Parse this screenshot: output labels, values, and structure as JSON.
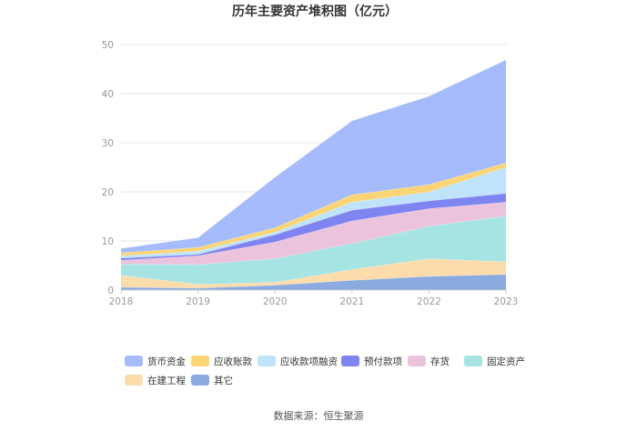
{
  "chart_data": {
    "type": "area",
    "stacked": true,
    "title": "历年主要资产堆积图（亿元）",
    "x": [
      "2018",
      "2019",
      "2020",
      "2021",
      "2022",
      "2023"
    ],
    "ylim": [
      0,
      50
    ],
    "yticks": [
      0,
      10,
      20,
      30,
      40,
      50
    ],
    "grid": true,
    "legend_position": "bottom",
    "series": [
      {
        "name": "其它",
        "color": "#8aaae0",
        "values": [
          0.6,
          0.4,
          1.0,
          2.0,
          2.8,
          3.2
        ]
      },
      {
        "name": "在建工程",
        "color": "#fbdcaa",
        "values": [
          2.4,
          0.8,
          0.6,
          2.2,
          3.6,
          2.6
        ]
      },
      {
        "name": "固定资产",
        "color": "#a6e3e3",
        "values": [
          2.3,
          4.0,
          4.8,
          5.3,
          6.6,
          9.3
        ]
      },
      {
        "name": "存货",
        "color": "#ebc3dd",
        "values": [
          0.8,
          1.8,
          3.4,
          4.6,
          3.6,
          2.8
        ]
      },
      {
        "name": "预付款项",
        "color": "#7f85f0",
        "values": [
          0.4,
          0.3,
          1.5,
          2.2,
          1.6,
          1.8
        ]
      },
      {
        "name": "应收款项融资",
        "color": "#bfe3fa",
        "values": [
          0.5,
          0.6,
          0.5,
          1.6,
          1.8,
          5.3
        ]
      },
      {
        "name": "应收账款",
        "color": "#fbd575",
        "values": [
          0.6,
          0.8,
          0.9,
          1.5,
          1.5,
          0.9
        ]
      },
      {
        "name": "货币资金",
        "color": "#a6bbfb",
        "values": [
          0.9,
          2.0,
          10.3,
          15.1,
          18.0,
          21.0
        ]
      }
    ],
    "legend_order": [
      "货币资金",
      "应收账款",
      "应收款项融资",
      "预付款项",
      "存货",
      "固定资产",
      "在建工程",
      "其它"
    ]
  },
  "source_text": "数据来源：恒生聚源"
}
